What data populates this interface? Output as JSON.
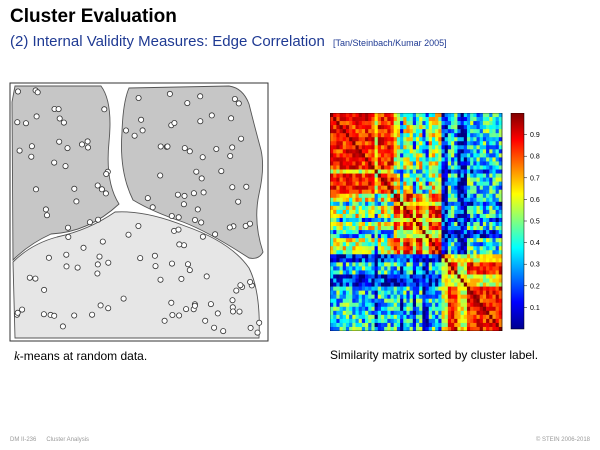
{
  "slide": {
    "title": "Cluster Evaluation",
    "subtitle": "(2) Internal Validity Measures: Edge Correlation",
    "reference": "[Tan/Steinbach/Kumar 2005]"
  },
  "left_figure": {
    "caption_var": "k",
    "caption_rest": "-means at random data."
  },
  "right_figure": {
    "caption": "Similarity matrix sorted by cluster label.",
    "colorbar": {
      "ticks": [
        "0.9",
        "0.8",
        "0.7",
        "0.6",
        "0.5",
        "0.4",
        "0.3",
        "0.2",
        "0.1"
      ],
      "colormap": "jet"
    }
  },
  "footer": {
    "left_code": "DM II-236",
    "left_topic": "Cluster Analysis",
    "right": "© STEIN 2006-2018"
  }
}
